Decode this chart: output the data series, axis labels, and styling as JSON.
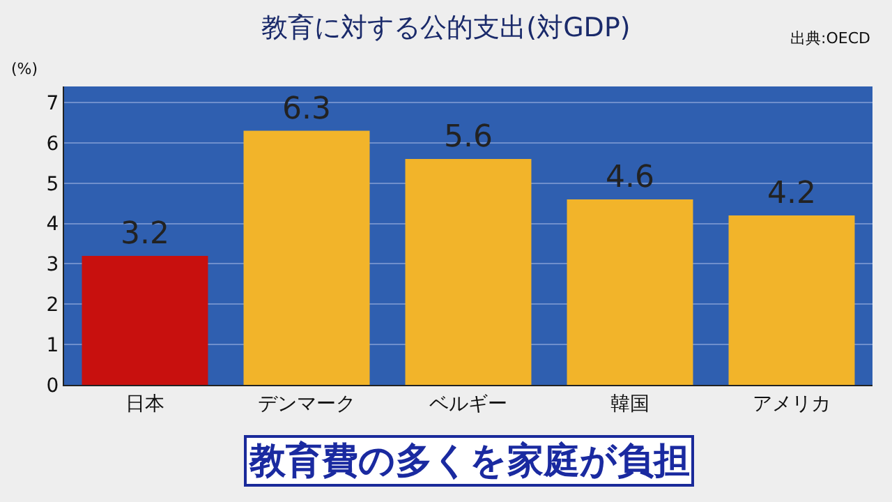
{
  "chart_data": {
    "type": "bar",
    "title": "教育に対する公的支出(対GDP)",
    "ylabel": "(%)",
    "categories": [
      "日本",
      "デンマーク",
      "ベルギー",
      "韓国",
      "アメリカ"
    ],
    "values": [
      3.2,
      6.3,
      5.6,
      4.6,
      4.2
    ],
    "colors": [
      "#c8100e",
      "#f2b42a",
      "#f2b42a",
      "#f2b42a",
      "#f2b42a"
    ],
    "ylim": [
      0,
      7.4
    ],
    "yticks": [
      0,
      1,
      2,
      3,
      4,
      5,
      6,
      7
    ],
    "grid": "y",
    "data_labels": true,
    "annotations": [
      "出典:OECD",
      "教育費の多くを家庭が負担"
    ]
  }
}
